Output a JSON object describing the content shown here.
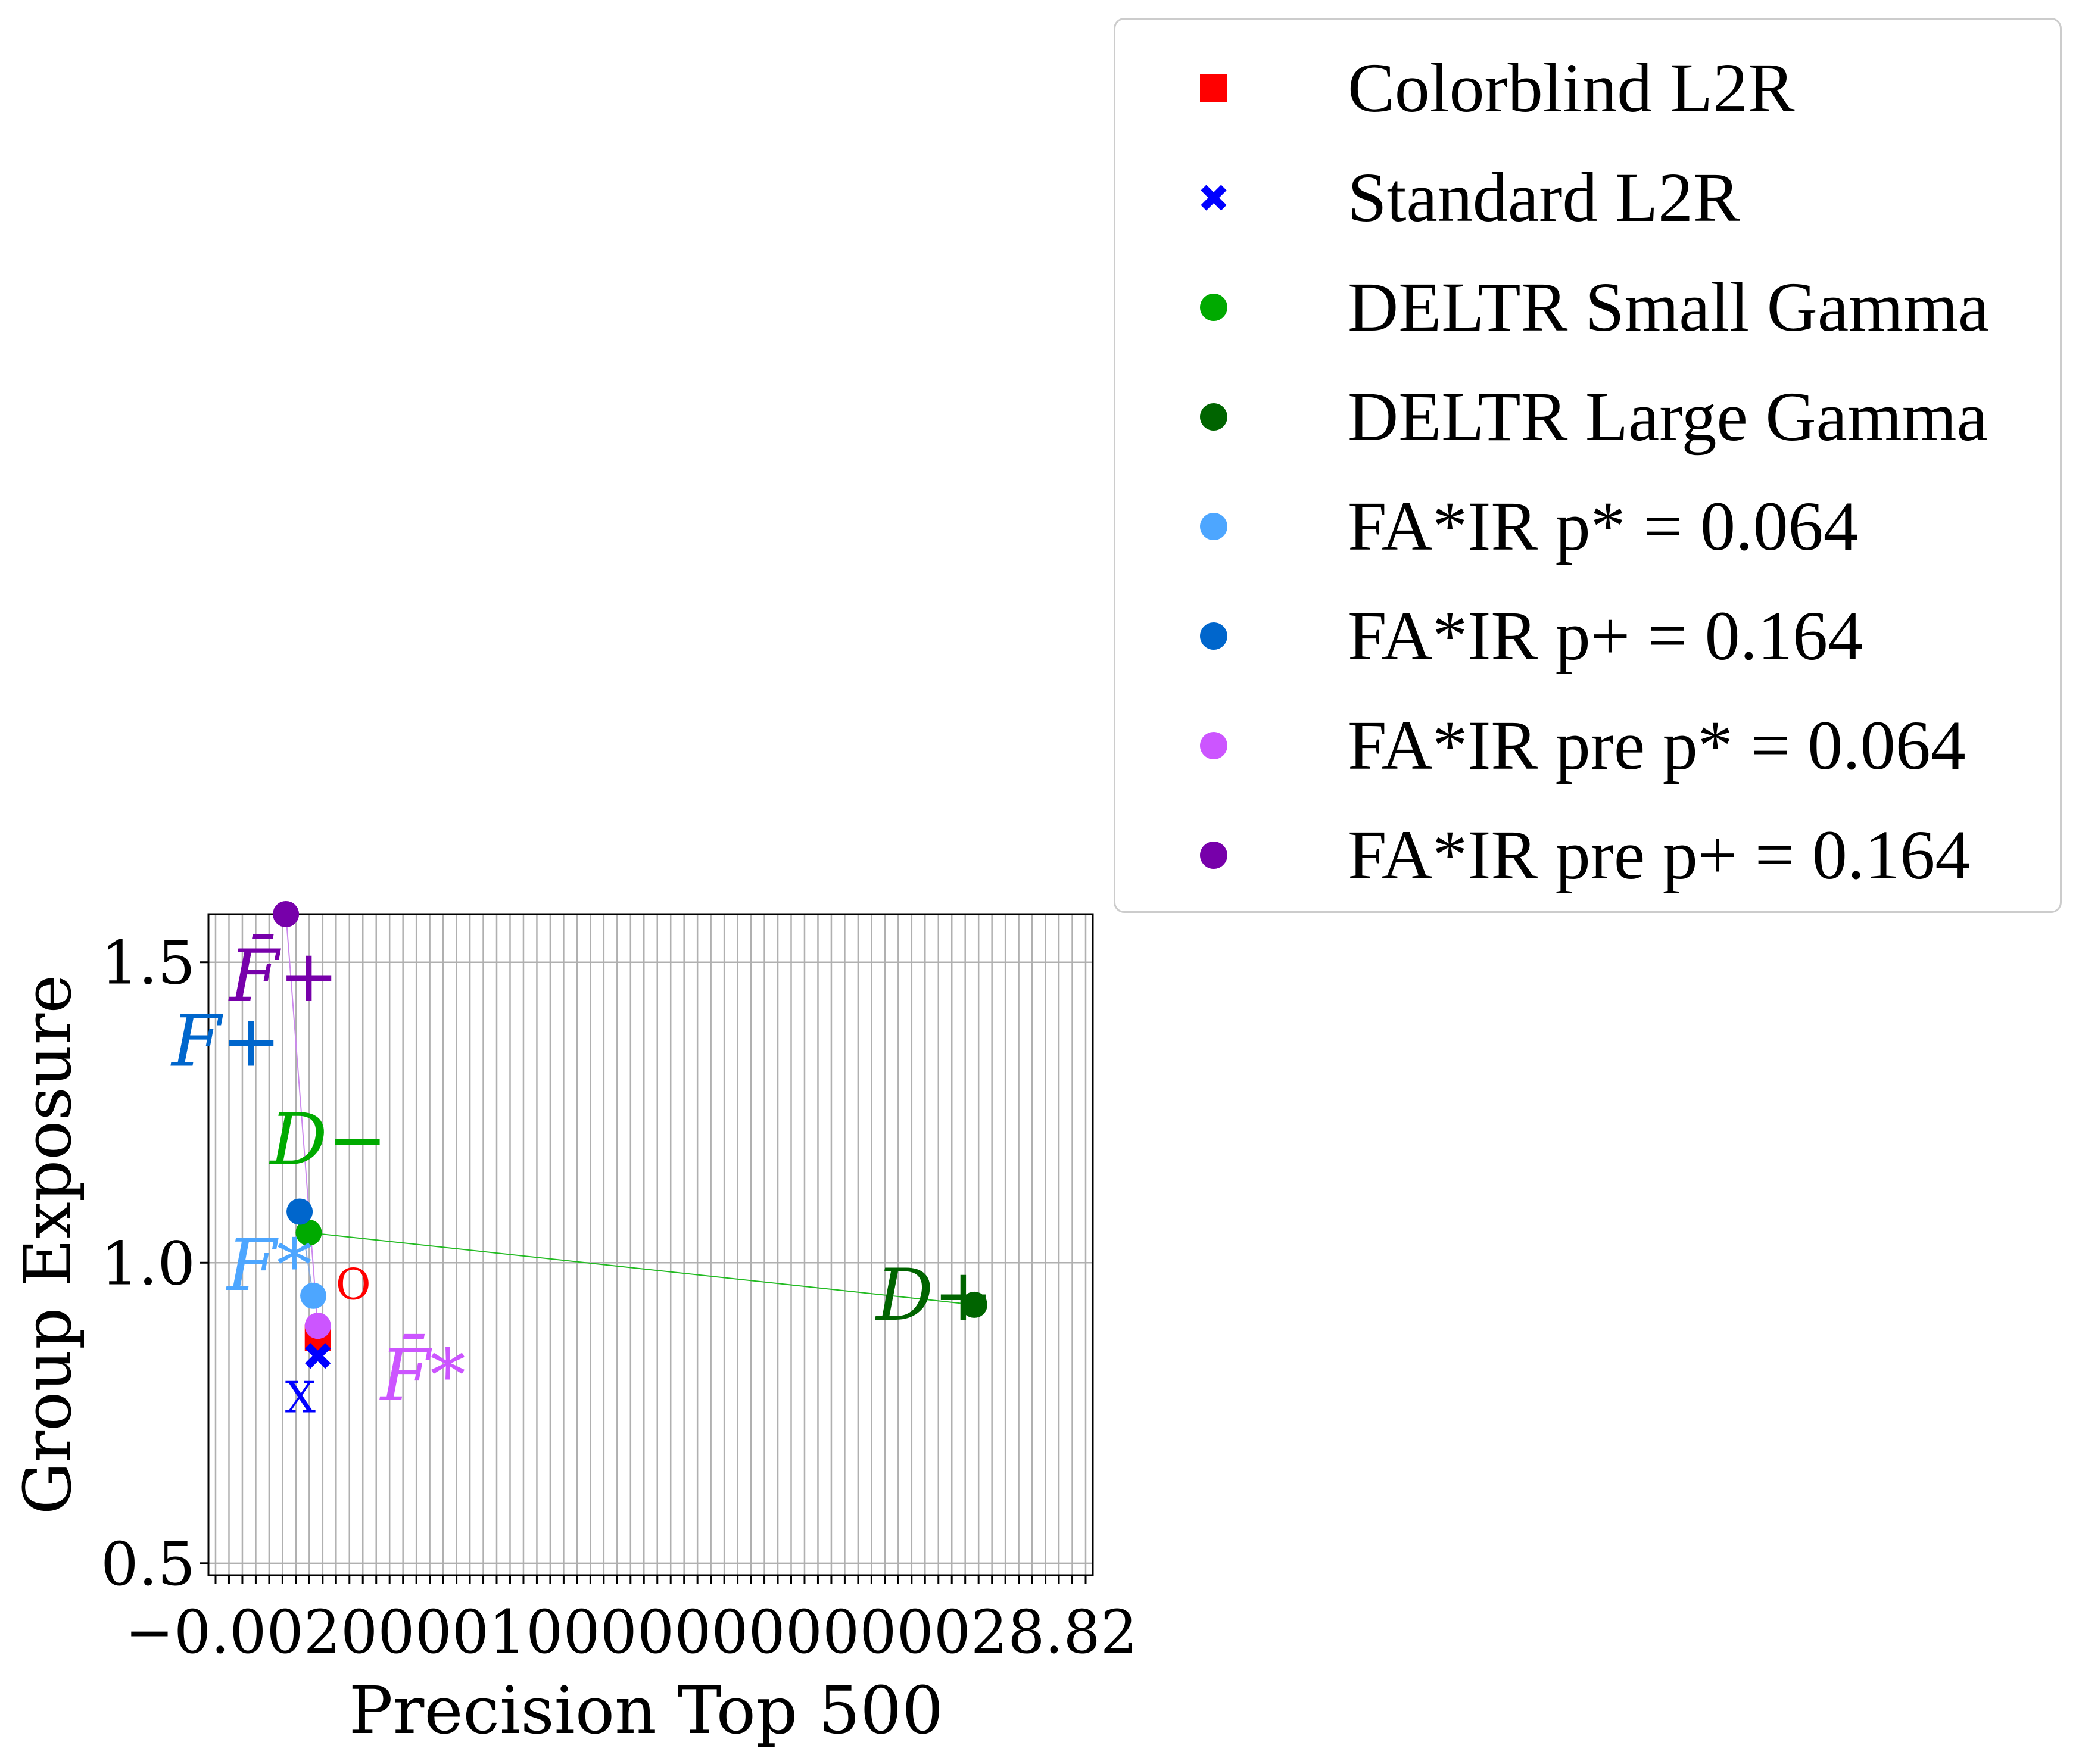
{
  "chart_data": {
    "type": "scatter",
    "xlabel": "Precision Top 500",
    "ylabel": "Group Exposure",
    "ylim": [
      0.48,
      1.58
    ],
    "yticks": [
      0.5,
      1.0,
      1.5
    ],
    "ytick_labels": [
      "0.5",
      "1.0",
      "1.5"
    ],
    "grid": true,
    "legend_position": "upper-right-outside",
    "series": [
      {
        "name": "Colorblind L2R",
        "marker": "square",
        "color": "#ff0000",
        "x": [
          0.0
        ],
        "y": [
          0.875
        ],
        "annotation": "O"
      },
      {
        "name": "Standard L2R",
        "marker": "x",
        "color": "#0000ff",
        "x": [
          0.0
        ],
        "y": [
          0.845
        ],
        "annotation": "X"
      },
      {
        "name": "DELTR Small Gamma",
        "marker": "circle",
        "color": "#00aa00",
        "x": [
          -0.001
        ],
        "y": [
          1.05
        ],
        "annotation": "D−"
      },
      {
        "name": "DELTR Large Gamma",
        "marker": "circle",
        "color": "#006400",
        "x": [
          0.072
        ],
        "y": [
          0.93
        ],
        "annotation": "D+"
      },
      {
        "name": "FA*IR p* = 0.064",
        "marker": "circle",
        "color": "#4da6ff",
        "x": [
          -0.0005
        ],
        "y": [
          0.945
        ],
        "annotation": "F*"
      },
      {
        "name": "FA*IR p+ = 0.164",
        "marker": "circle",
        "color": "#0066cc",
        "x": [
          -0.002
        ],
        "y": [
          1.085
        ],
        "annotation": "F+"
      },
      {
        "name": "FA*IR pre p* = 0.064",
        "marker": "circle",
        "color": "#cc55ff",
        "x": [
          0.0
        ],
        "y": [
          0.895
        ],
        "annotation": "F̄*"
      },
      {
        "name": "FA*IR pre p+ = 0.164",
        "marker": "circle",
        "color": "#7700aa",
        "x": [
          -0.0035
        ],
        "y": [
          1.58
        ],
        "annotation": "F̄+"
      }
    ]
  },
  "legend": {
    "items": [
      {
        "label": "Colorblind L2R",
        "marker": "square",
        "color": "#ff0000"
      },
      {
        "label": "Standard L2R",
        "marker": "x",
        "color": "#0000ff"
      },
      {
        "label": "DELTR Small Gamma",
        "marker": "circle",
        "color": "#00aa00"
      },
      {
        "label": "DELTR Large Gamma",
        "marker": "circle",
        "color": "#006400"
      },
      {
        "label": "FA*IR p* = 0.064",
        "marker": "circle",
        "color": "#4da6ff"
      },
      {
        "label": "FA*IR p+ = 0.164",
        "marker": "circle",
        "color": "#0066cc"
      },
      {
        "label": "FA*IR pre p* = 0.064",
        "marker": "circle",
        "color": "#cc55ff"
      },
      {
        "label": "FA*IR pre p+ = 0.164",
        "marker": "circle",
        "color": "#7700aa"
      }
    ]
  },
  "xtick_text": "−0.0020000100000000000028.82"
}
